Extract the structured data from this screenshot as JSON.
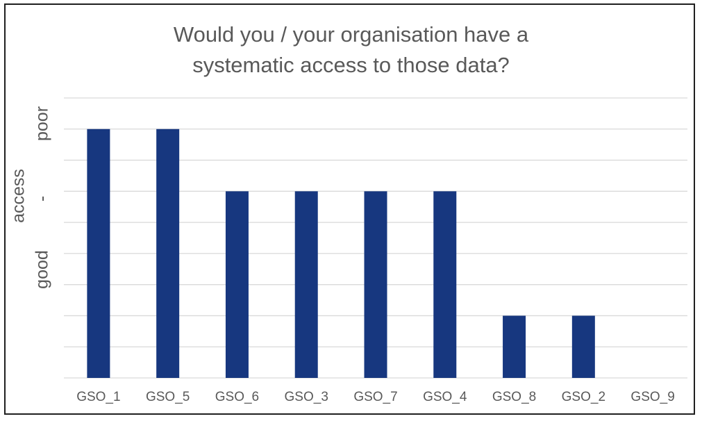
{
  "chart_data": {
    "type": "bar",
    "title_lines": [
      "Would you / your organisation have a",
      "systematic access to those data?"
    ],
    "xlabel": "",
    "ylabel_parts": [
      "good",
      "-",
      "access",
      "poor"
    ],
    "categories": [
      "GSO_1",
      "GSO_5",
      "GSO_6",
      "GSO_3",
      "GSO_7",
      "GSO_4",
      "GSO_8",
      "GSO_2",
      "GSO_9"
    ],
    "values": [
      8,
      8,
      6,
      6,
      6,
      6,
      2,
      2,
      0
    ],
    "ylim": [
      0,
      9
    ],
    "grid": true,
    "legend": "none",
    "bar_color": "#17377f",
    "grid_color": "#d9d9d9"
  }
}
